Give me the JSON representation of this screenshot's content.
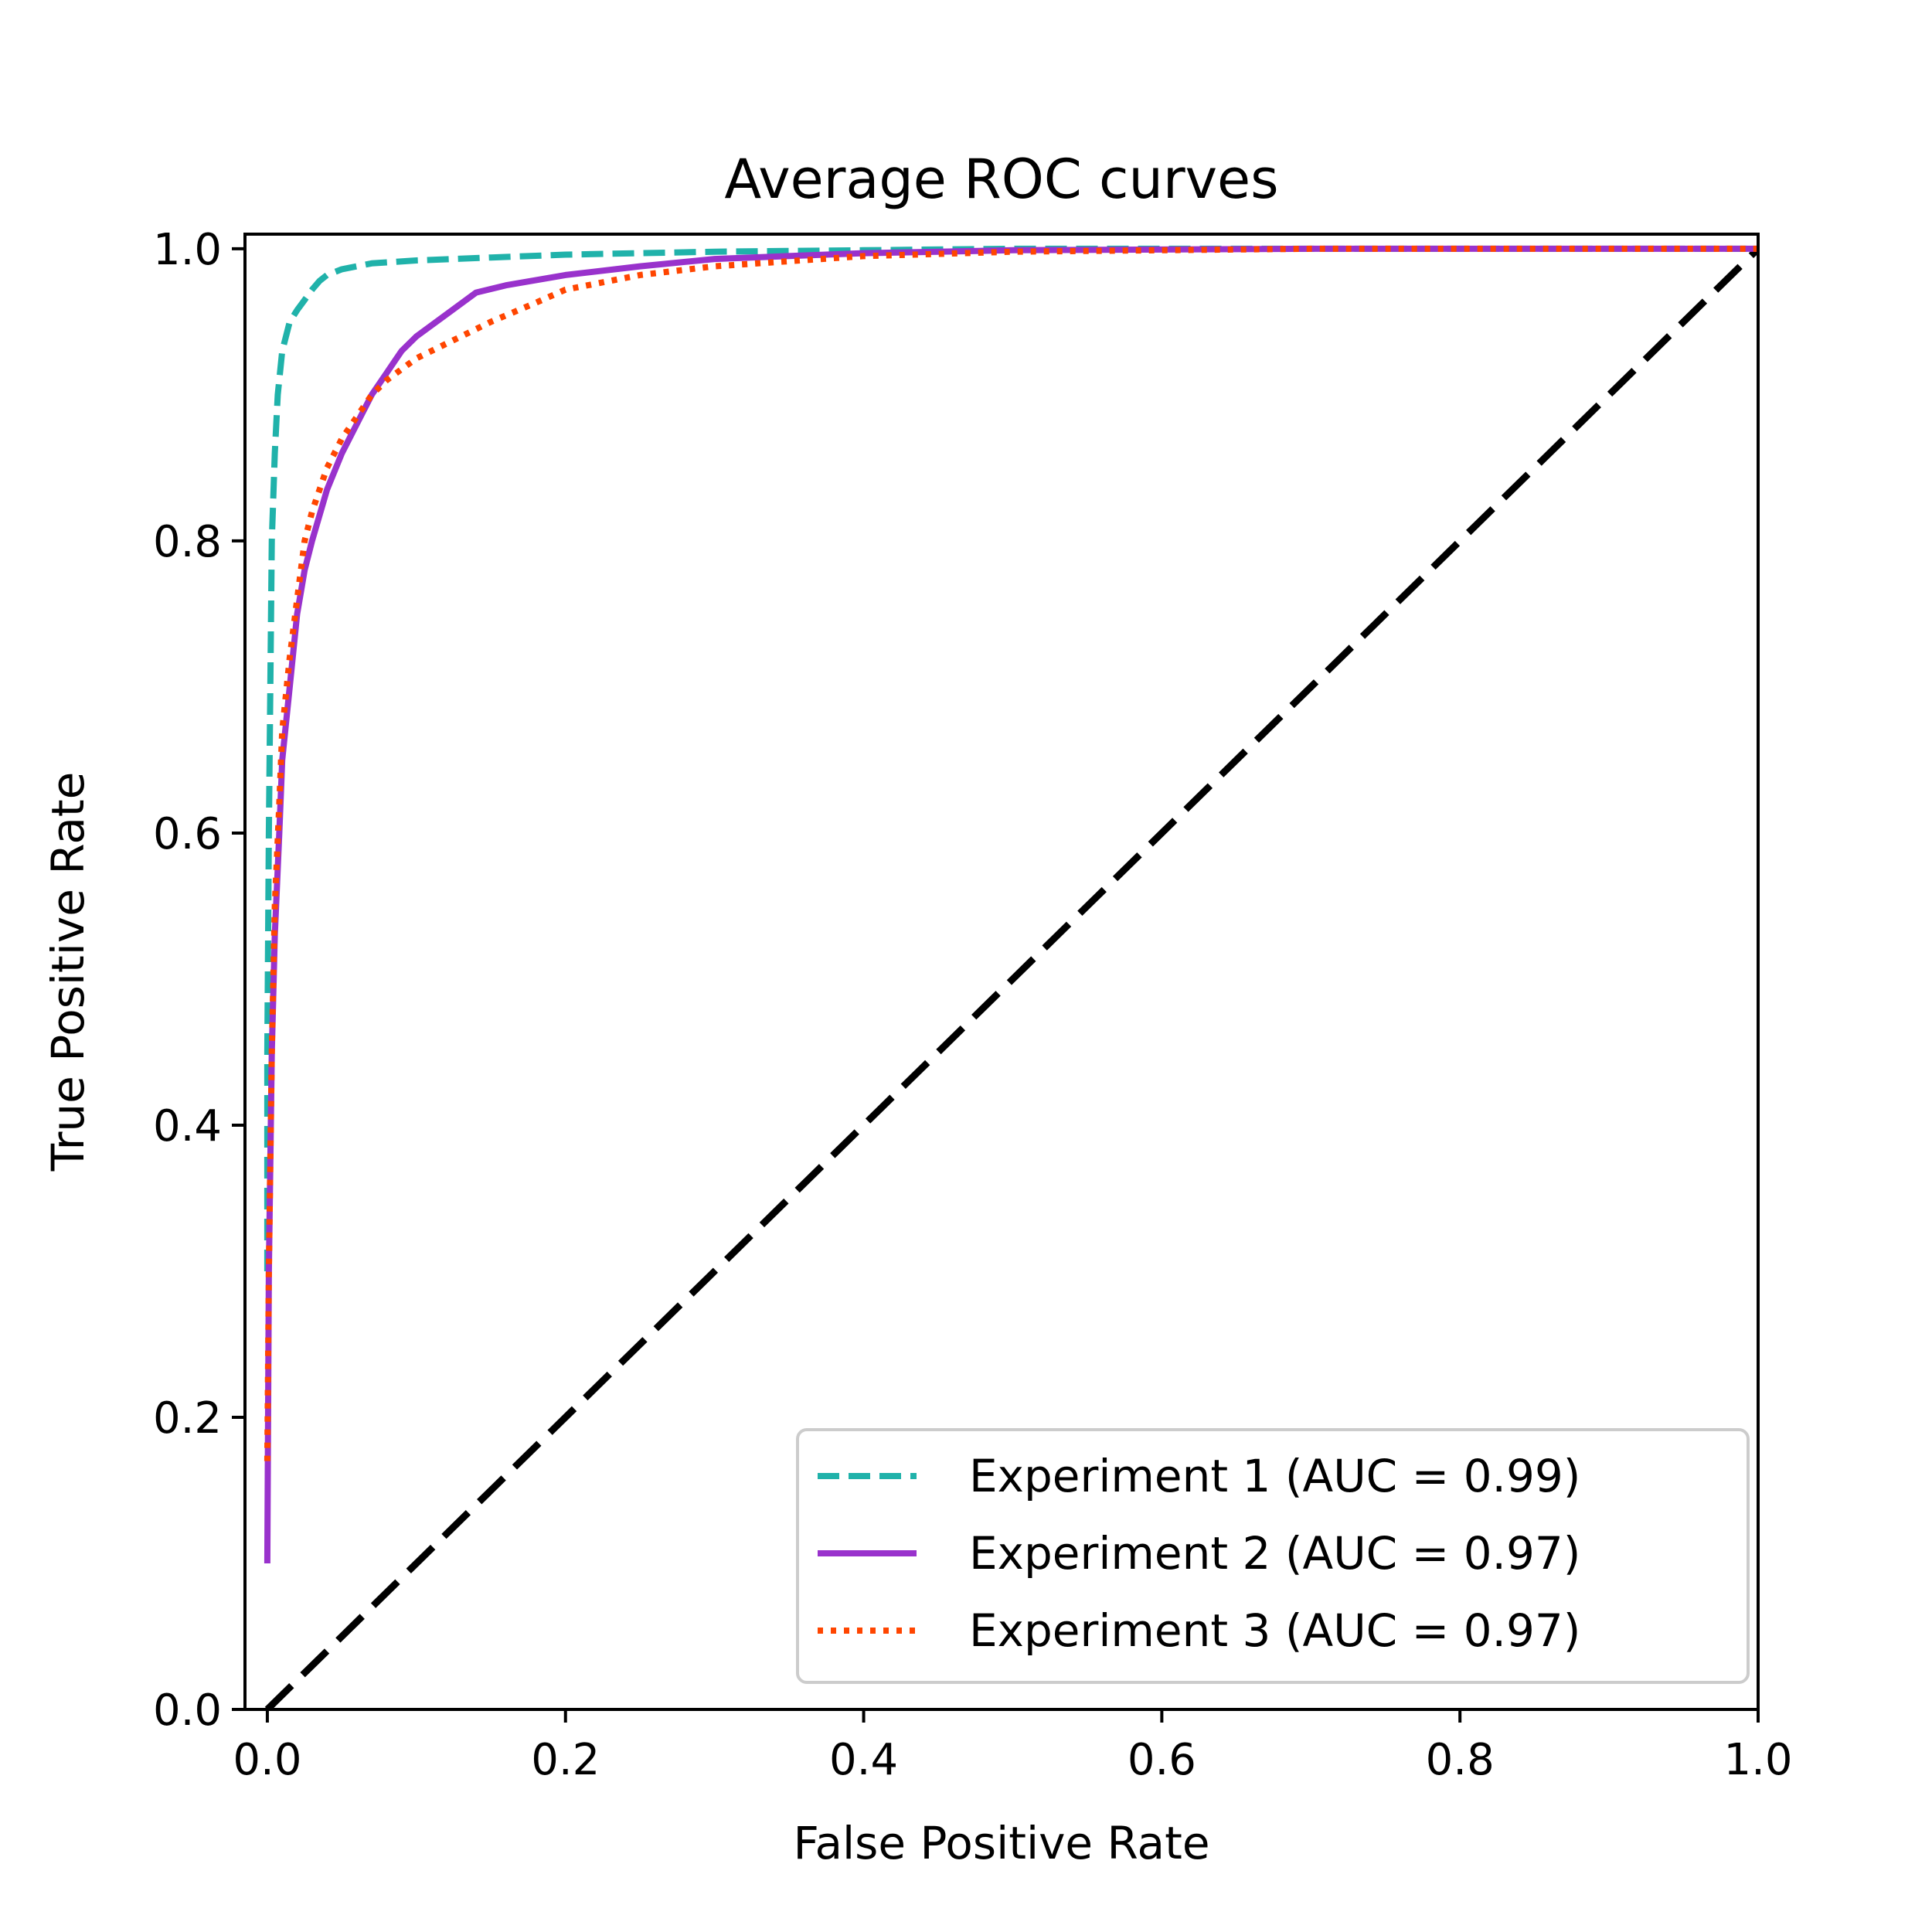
{
  "chart_data": {
    "type": "line",
    "title": "Average ROC curves",
    "xlabel": "False Positive Rate",
    "ylabel": "True Positive Rate",
    "xlim": [
      -0.015,
      1.0
    ],
    "ylim": [
      0.0,
      1.01
    ],
    "xticks": [
      0.0,
      0.2,
      0.4,
      0.6,
      0.8,
      1.0
    ],
    "yticks": [
      0.0,
      0.2,
      0.4,
      0.6,
      0.8,
      1.0
    ],
    "xtick_labels": [
      "0.0",
      "0.2",
      "0.4",
      "0.6",
      "0.8",
      "1.0"
    ],
    "ytick_labels": [
      "0.0",
      "0.2",
      "0.4",
      "0.6",
      "0.8",
      "1.0"
    ],
    "grid": false,
    "legend_position": "lower-right",
    "series": [
      {
        "name": "Experiment 1 (AUC = 0.99)",
        "color": "#20b2aa",
        "style": "dashed",
        "x": [
          0.0,
          0.0,
          0.001,
          0.002,
          0.003,
          0.005,
          0.007,
          0.01,
          0.015,
          0.02,
          0.025,
          0.03,
          0.035,
          0.04,
          0.05,
          0.07,
          0.1,
          0.15,
          0.2,
          0.3,
          0.4,
          0.5,
          0.7,
          1.0
        ],
        "y": [
          0.3,
          0.45,
          0.6,
          0.7,
          0.8,
          0.86,
          0.9,
          0.93,
          0.95,
          0.958,
          0.965,
          0.972,
          0.978,
          0.982,
          0.986,
          0.99,
          0.992,
          0.994,
          0.996,
          0.998,
          0.999,
          1.0,
          1.0,
          1.0
        ]
      },
      {
        "name": "Experiment 2 (AUC = 0.97)",
        "color": "#9932cc",
        "style": "solid",
        "x": [
          0.0,
          0.001,
          0.003,
          0.005,
          0.008,
          0.01,
          0.015,
          0.02,
          0.025,
          0.03,
          0.04,
          0.05,
          0.06,
          0.07,
          0.08,
          0.09,
          0.1,
          0.12,
          0.14,
          0.16,
          0.2,
          0.25,
          0.3,
          0.4,
          0.5,
          0.7,
          1.0
        ],
        "y": [
          0.1,
          0.3,
          0.45,
          0.53,
          0.6,
          0.65,
          0.7,
          0.75,
          0.78,
          0.8,
          0.835,
          0.86,
          0.88,
          0.9,
          0.915,
          0.93,
          0.94,
          0.955,
          0.97,
          0.975,
          0.982,
          0.988,
          0.993,
          0.997,
          0.999,
          1.0,
          1.0
        ]
      },
      {
        "name": "Experiment 3 (AUC = 0.97)",
        "color": "#ff4500",
        "style": "dotted",
        "x": [
          0.0,
          0.001,
          0.003,
          0.005,
          0.008,
          0.01,
          0.015,
          0.02,
          0.025,
          0.03,
          0.04,
          0.05,
          0.06,
          0.07,
          0.08,
          0.1,
          0.12,
          0.15,
          0.18,
          0.2,
          0.25,
          0.3,
          0.4,
          0.5,
          0.7,
          1.0
        ],
        "y": [
          0.17,
          0.3,
          0.45,
          0.55,
          0.62,
          0.67,
          0.72,
          0.76,
          0.8,
          0.82,
          0.85,
          0.87,
          0.885,
          0.9,
          0.91,
          0.925,
          0.935,
          0.95,
          0.963,
          0.972,
          0.982,
          0.988,
          0.995,
          0.998,
          1.0,
          1.0
        ]
      }
    ],
    "reference_line": {
      "color": "#000000",
      "style": "dashed",
      "x": [
        0.0,
        1.0
      ],
      "y": [
        0.0,
        1.0
      ]
    }
  }
}
